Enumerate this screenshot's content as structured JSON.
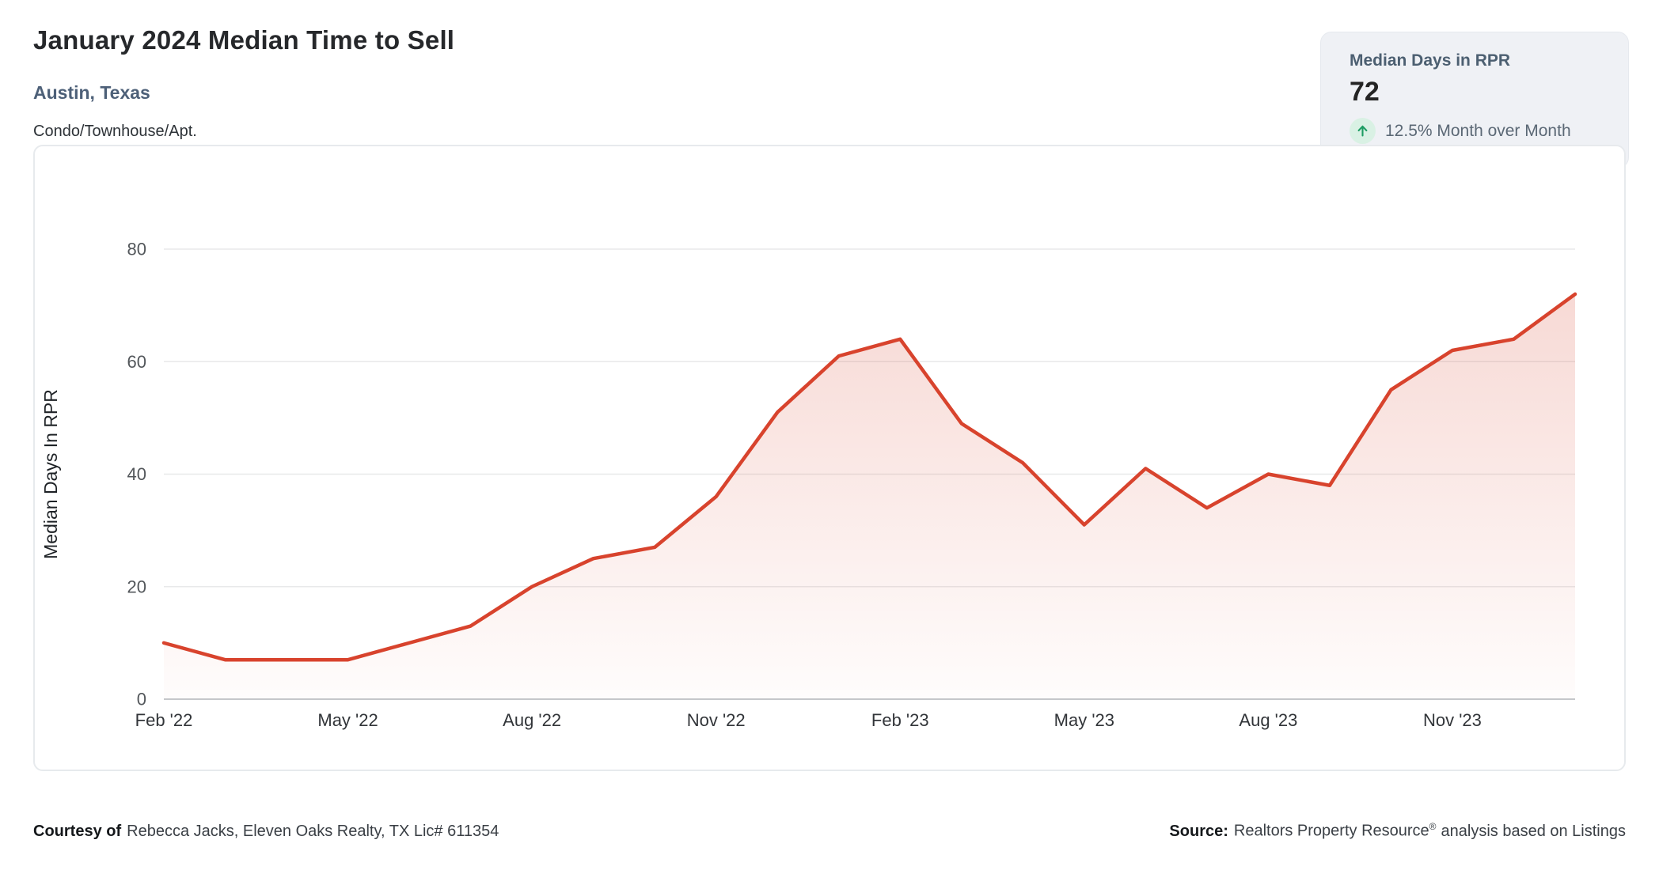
{
  "header": {
    "title": "January 2024 Median Time to Sell",
    "location": "Austin, Texas",
    "property_type": "Condo/Townhouse/Apt."
  },
  "stat_card": {
    "label": "Median Days in RPR",
    "value": "72",
    "change_text": "12.5% Month over Month",
    "trend_icon": "up-arrow-icon",
    "trend_color": "#1d9d63",
    "trend_bg": "#d9f1e4"
  },
  "chart_data": {
    "type": "area",
    "title": "January 2024 Median Time to Sell",
    "categories": [
      "Feb '22",
      "Mar '22",
      "Apr '22",
      "May '22",
      "Jun '22",
      "Jul '22",
      "Aug '22",
      "Sep '22",
      "Oct '22",
      "Nov '22",
      "Dec '22",
      "Jan '23",
      "Feb '23",
      "Mar '23",
      "Apr '23",
      "May '23",
      "Jun '23",
      "Jul '23",
      "Aug '23",
      "Sep '23",
      "Oct '23",
      "Nov '23",
      "Dec '23",
      "Jan '24"
    ],
    "values": [
      10,
      7,
      7,
      7,
      10,
      13,
      20,
      25,
      27,
      36,
      51,
      61,
      64,
      49,
      42,
      31,
      41,
      34,
      40,
      38,
      55,
      62,
      64,
      72
    ],
    "xlabel": "",
    "ylabel": "Median Days In RPR",
    "ylim": [
      0,
      80
    ],
    "yticks": [
      0,
      20,
      40,
      60,
      80
    ],
    "xticks": [
      {
        "index": 0,
        "label": "Feb '22"
      },
      {
        "index": 3,
        "label": "May '22"
      },
      {
        "index": 6,
        "label": "Aug '22"
      },
      {
        "index": 9,
        "label": "Nov '22"
      },
      {
        "index": 12,
        "label": "Feb '23"
      },
      {
        "index": 15,
        "label": "May '23"
      },
      {
        "index": 18,
        "label": "Aug '23"
      },
      {
        "index": 21,
        "label": "Nov '23"
      }
    ],
    "line_color": "#d8432d",
    "grid": true,
    "legend": false
  },
  "footer": {
    "left_bold": "Courtesy of",
    "left_text": "Rebecca Jacks, Eleven Oaks Realty, TX Lic# 611354",
    "right_bold": "Source:",
    "right_name": "Realtors Property Resource",
    "right_reg": "®",
    "right_text": "analysis based on Listings"
  }
}
